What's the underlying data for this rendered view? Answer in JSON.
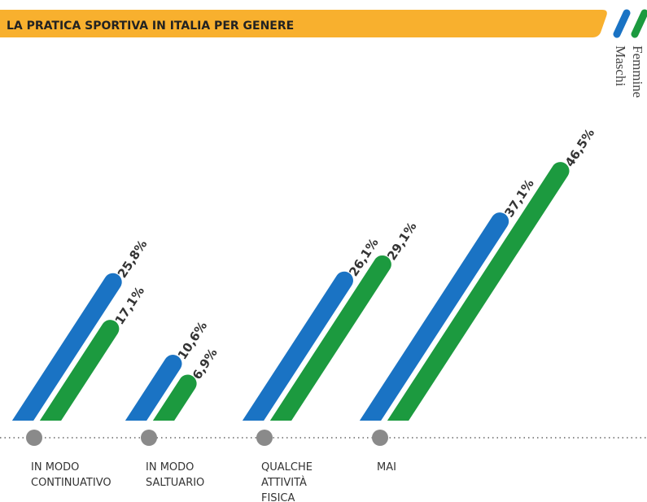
{
  "chart_data": {
    "type": "slanted-bar",
    "title": "LA PRATICA SPORTIVA IN ITALIA PER GENERE",
    "categories": [
      [
        "IN MODO",
        "CONTINUATIVO"
      ],
      [
        "IN MODO",
        "SALTUARIO"
      ],
      [
        "QUALCHE",
        "ATTIVITÀ",
        "FISICA"
      ],
      [
        "MAI"
      ]
    ],
    "series": [
      {
        "name": "Maschi",
        "color": "#1a73c4",
        "values": [
          25.8,
          10.6,
          26.1,
          37.1
        ],
        "value_labels": [
          "25,8%",
          "10,6%",
          "26,1%",
          "37,1%"
        ]
      },
      {
        "name": "Femmine",
        "color": "#1c9a3f",
        "values": [
          17.1,
          6.9,
          29.1,
          46.5
        ],
        "value_labels": [
          "17,1%",
          "6,9%",
          "29,1%",
          "46,5%"
        ]
      }
    ]
  }
}
